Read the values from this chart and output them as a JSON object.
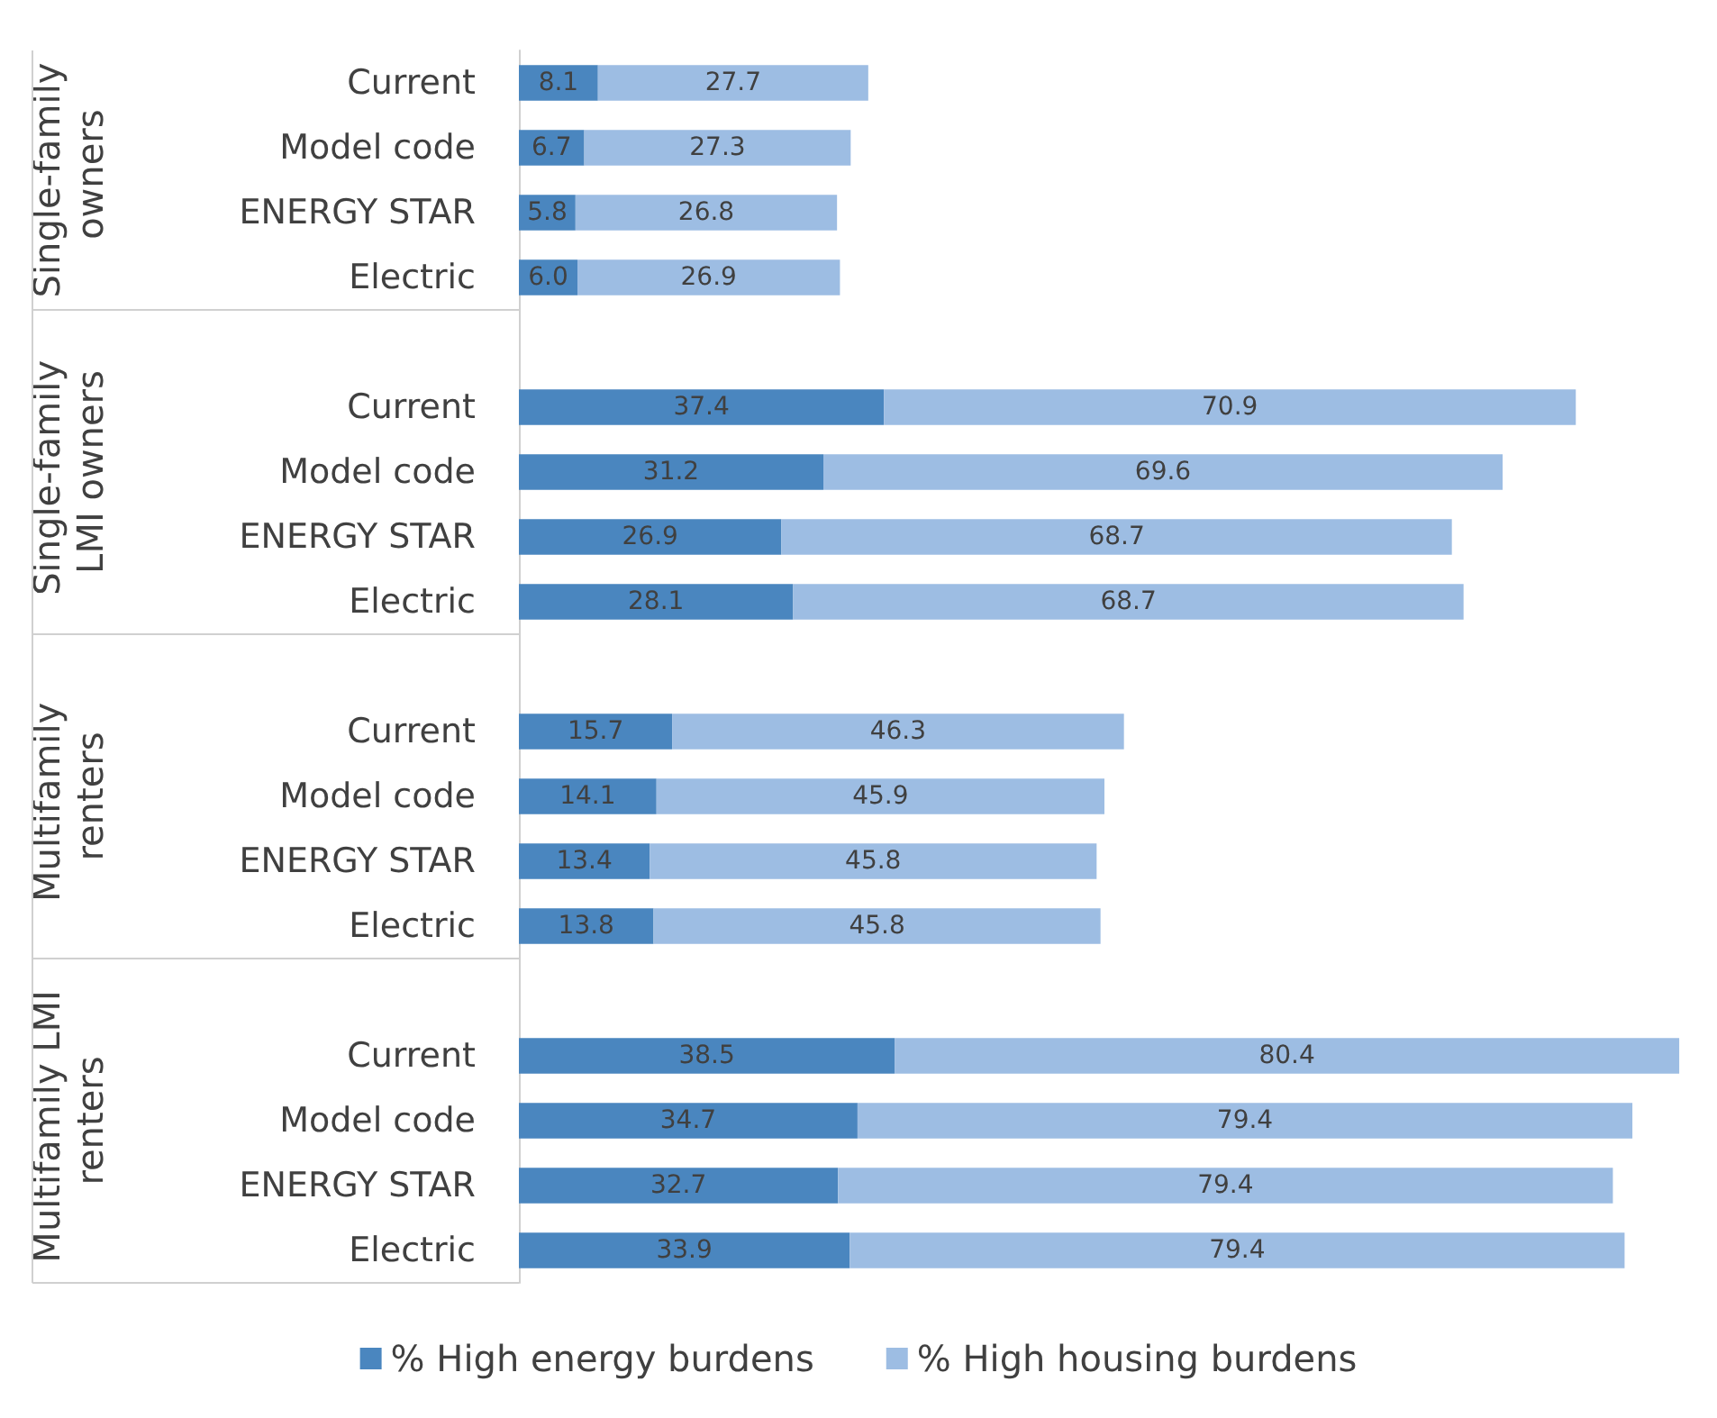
{
  "chart_data": {
    "type": "bar",
    "orientation": "horizontal",
    "stacked": true,
    "tick_labels": "y",
    "legend": "bottom",
    "grid": false,
    "categories": [
      "Current",
      "Model code",
      "ENERGY STAR",
      "Electric",
      null,
      "Current",
      "Model code",
      "ENERGY STAR",
      "Electric",
      null,
      "Current",
      "Model code",
      "ENERGY STAR",
      "Electric",
      null,
      "Current",
      "Model code",
      "ENERGY STAR",
      "Electric"
    ],
    "series": [
      {
        "name": "% High energy burdens",
        "color": "#4a86bf",
        "values": [
          8.1,
          6.7,
          5.8,
          6.0,
          null,
          37.4,
          31.2,
          26.9,
          28.1,
          null,
          15.7,
          14.1,
          13.4,
          13.8,
          null,
          38.5,
          34.7,
          32.7,
          33.9
        ],
        "value_labels": [
          "8.1",
          "6.7",
          "5.8",
          "6.0",
          null,
          "37.4",
          "31.2",
          "26.9",
          "28.1",
          null,
          "15.7",
          "14.1",
          "13.4",
          "13.8",
          null,
          "38.5",
          "34.7",
          "32.7",
          "33.9"
        ]
      },
      {
        "name": "% High housing burdens",
        "color": "#9dbde3",
        "values": [
          27.7,
          27.3,
          26.8,
          26.9,
          null,
          70.9,
          69.6,
          68.7,
          68.7,
          null,
          46.3,
          45.9,
          45.8,
          45.8,
          null,
          80.4,
          79.4,
          79.4,
          79.4
        ],
        "value_labels": [
          "27.7",
          "27.3",
          "26.8",
          "26.9",
          null,
          "70.9",
          "69.6",
          "68.7",
          "68.7",
          null,
          "46.3",
          "45.9",
          "45.8",
          "45.8",
          null,
          "80.4",
          "79.4",
          "79.4",
          "79.4"
        ]
      }
    ],
    "annotations": [
      "Single-family owners",
      "Single-family LMI owners",
      "Multifamily renters",
      "Multifamily LMI renters"
    ]
  }
}
